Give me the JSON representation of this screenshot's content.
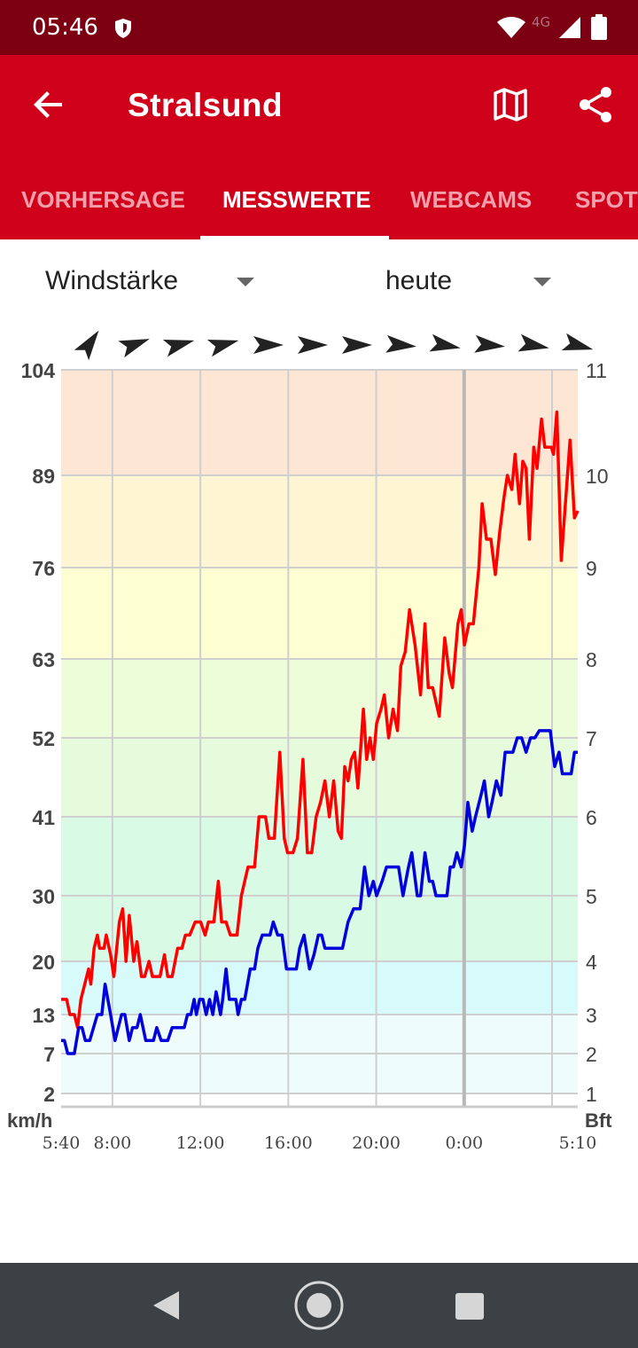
{
  "status": {
    "time": "05:46",
    "network": "4G",
    "battery": "95"
  },
  "header": {
    "title": "Stralsund"
  },
  "tabs": [
    {
      "label": "VORHERSAGE",
      "active": false
    },
    {
      "label": "MESSWERTE",
      "active": true
    },
    {
      "label": "WEBCAMS",
      "active": false
    },
    {
      "label": "SPOT",
      "active": false
    }
  ],
  "filters": {
    "metric": "Windstärke",
    "period": "heute"
  },
  "colors": {
    "status_bar": "#7d0012",
    "app_bar": "#d0021b",
    "gust_line": "#ff0000",
    "wind_line": "#0000dd"
  },
  "chart_data": {
    "type": "line",
    "y_left_unit": "km/h",
    "y_right_unit": "Bft",
    "y_left_ticks": [
      2,
      7,
      13,
      20,
      30,
      41,
      52,
      63,
      76,
      89,
      104
    ],
    "y_right_ticks": [
      1,
      2,
      3,
      4,
      5,
      6,
      7,
      8,
      9,
      10,
      11
    ],
    "x_tick_labels": [
      "5:40",
      "8:00",
      "12:00",
      "16:00",
      "20:00",
      "0:00",
      "5:10"
    ],
    "x_tick_hours": [
      0,
      2.333,
      6.333,
      10.333,
      14.333,
      18.333,
      23.5
    ],
    "x_range_hours": [
      0,
      23.5
    ],
    "wind_direction_arrows_deg": [
      35,
      70,
      75,
      75,
      90,
      90,
      90,
      95,
      100,
      95,
      100,
      105
    ],
    "bands": [
      {
        "from": 2,
        "to": 13,
        "color": "#eefdfc"
      },
      {
        "from": 13,
        "to": 20,
        "color": "#d7fafa"
      },
      {
        "from": 20,
        "to": 41,
        "color": "#d9fbe6"
      },
      {
        "from": 41,
        "to": 52,
        "color": "#e6fbdc"
      },
      {
        "from": 52,
        "to": 63,
        "color": "#eefdd9"
      },
      {
        "from": 63,
        "to": 76,
        "color": "#fefed3"
      },
      {
        "from": 76,
        "to": 89,
        "color": "#fef5d3"
      },
      {
        "from": 89,
        "to": 104,
        "color": "#fde6d3"
      }
    ],
    "series": [
      {
        "values": [
          [
            0.0,
            15
          ],
          [
            0.25,
            15
          ],
          [
            0.4,
            13
          ],
          [
            0.6,
            13
          ],
          [
            0.75,
            11
          ],
          [
            0.9,
            15
          ],
          [
            1.25,
            19
          ],
          [
            1.35,
            17
          ],
          [
            1.5,
            22
          ],
          [
            1.65,
            24
          ],
          [
            1.75,
            22
          ],
          [
            1.95,
            22
          ],
          [
            2.05,
            24
          ],
          [
            2.25,
            21
          ],
          [
            2.4,
            18
          ],
          [
            2.65,
            26
          ],
          [
            2.8,
            28
          ],
          [
            2.95,
            20
          ],
          [
            3.1,
            27
          ],
          [
            3.3,
            20
          ],
          [
            3.45,
            23
          ],
          [
            3.65,
            18
          ],
          [
            3.8,
            18
          ],
          [
            4.0,
            20
          ],
          [
            4.15,
            18
          ],
          [
            4.5,
            18
          ],
          [
            4.7,
            21
          ],
          [
            4.85,
            18
          ],
          [
            5.05,
            18
          ],
          [
            5.3,
            22
          ],
          [
            5.5,
            22
          ],
          [
            5.65,
            24
          ],
          [
            5.85,
            24
          ],
          [
            6.1,
            26
          ],
          [
            6.35,
            26
          ],
          [
            6.55,
            24
          ],
          [
            6.7,
            26
          ],
          [
            6.95,
            26
          ],
          [
            7.15,
            32
          ],
          [
            7.3,
            26
          ],
          [
            7.5,
            26
          ],
          [
            7.7,
            24
          ],
          [
            8.0,
            24
          ],
          [
            8.2,
            30
          ],
          [
            8.5,
            34
          ],
          [
            8.8,
            34
          ],
          [
            9.0,
            41
          ],
          [
            9.3,
            41
          ],
          [
            9.45,
            38
          ],
          [
            9.7,
            38
          ],
          [
            9.95,
            50
          ],
          [
            10.15,
            38
          ],
          [
            10.3,
            36
          ],
          [
            10.55,
            36
          ],
          [
            10.75,
            38
          ],
          [
            11.0,
            49
          ],
          [
            11.2,
            36
          ],
          [
            11.4,
            36
          ],
          [
            11.6,
            41
          ],
          [
            11.8,
            43
          ],
          [
            12.0,
            46
          ],
          [
            12.2,
            41
          ],
          [
            12.4,
            46
          ],
          [
            12.6,
            39
          ],
          [
            12.75,
            38
          ],
          [
            12.9,
            48
          ],
          [
            13.05,
            46
          ],
          [
            13.2,
            49
          ],
          [
            13.35,
            50
          ],
          [
            13.5,
            45
          ],
          [
            13.75,
            56
          ],
          [
            13.9,
            49
          ],
          [
            14.05,
            52
          ],
          [
            14.2,
            49
          ],
          [
            14.35,
            54
          ],
          [
            14.55,
            56
          ],
          [
            14.7,
            58
          ],
          [
            14.9,
            52
          ],
          [
            15.1,
            56
          ],
          [
            15.3,
            53
          ],
          [
            15.45,
            62
          ],
          [
            15.65,
            64
          ],
          [
            15.85,
            70
          ],
          [
            16.1,
            65
          ],
          [
            16.35,
            58
          ],
          [
            16.55,
            68
          ],
          [
            16.7,
            59
          ],
          [
            16.9,
            59
          ],
          [
            17.2,
            55
          ],
          [
            17.45,
            66
          ],
          [
            17.65,
            61
          ],
          [
            17.8,
            59
          ],
          [
            18.05,
            68
          ],
          [
            18.2,
            70
          ],
          [
            18.35,
            65
          ],
          [
            18.55,
            68
          ],
          [
            18.75,
            68
          ],
          [
            19.0,
            76
          ],
          [
            19.15,
            85
          ],
          [
            19.35,
            80
          ],
          [
            19.55,
            80
          ],
          [
            19.75,
            75
          ],
          [
            19.95,
            81
          ],
          [
            20.15,
            86
          ],
          [
            20.3,
            89
          ],
          [
            20.5,
            87
          ],
          [
            20.65,
            92
          ],
          [
            20.85,
            85
          ],
          [
            21.0,
            91
          ],
          [
            21.15,
            90
          ],
          [
            21.3,
            80
          ],
          [
            21.5,
            93
          ],
          [
            21.65,
            90
          ],
          [
            21.85,
            97
          ],
          [
            22.0,
            93
          ],
          [
            22.3,
            93
          ],
          [
            22.4,
            92
          ],
          [
            22.55,
            98
          ],
          [
            22.75,
            77
          ],
          [
            23.15,
            94
          ],
          [
            23.35,
            83
          ],
          [
            23.5,
            84
          ]
        ]
      },
      {
        "values": [
          [
            0.0,
            9
          ],
          [
            0.15,
            9
          ],
          [
            0.3,
            7
          ],
          [
            0.6,
            7
          ],
          [
            0.8,
            11
          ],
          [
            0.95,
            11
          ],
          [
            1.1,
            9
          ],
          [
            1.3,
            9
          ],
          [
            1.65,
            13
          ],
          [
            1.85,
            13
          ],
          [
            2.0,
            17
          ],
          [
            2.25,
            13
          ],
          [
            2.45,
            9
          ],
          [
            2.75,
            13
          ],
          [
            2.9,
            13
          ],
          [
            3.1,
            9
          ],
          [
            3.25,
            11
          ],
          [
            3.45,
            11
          ],
          [
            3.6,
            13
          ],
          [
            3.85,
            9
          ],
          [
            4.2,
            9
          ],
          [
            4.35,
            11
          ],
          [
            4.55,
            9
          ],
          [
            4.85,
            9
          ],
          [
            5.05,
            11
          ],
          [
            5.3,
            11
          ],
          [
            5.6,
            11
          ],
          [
            5.75,
            13
          ],
          [
            5.9,
            13
          ],
          [
            6.05,
            15
          ],
          [
            6.15,
            13
          ],
          [
            6.3,
            15
          ],
          [
            6.45,
            15
          ],
          [
            6.6,
            13
          ],
          [
            6.75,
            15
          ],
          [
            6.9,
            13
          ],
          [
            7.05,
            16
          ],
          [
            7.25,
            13
          ],
          [
            7.35,
            15
          ],
          [
            7.5,
            19
          ],
          [
            7.65,
            15
          ],
          [
            7.95,
            15
          ],
          [
            8.05,
            13
          ],
          [
            8.2,
            15
          ],
          [
            8.35,
            15
          ],
          [
            8.6,
            19
          ],
          [
            8.8,
            19
          ],
          [
            8.95,
            22
          ],
          [
            9.15,
            24
          ],
          [
            9.5,
            24
          ],
          [
            9.65,
            26
          ],
          [
            9.85,
            24
          ],
          [
            10.05,
            24
          ],
          [
            10.25,
            19
          ],
          [
            10.45,
            19
          ],
          [
            10.7,
            19
          ],
          [
            10.85,
            22
          ],
          [
            11.05,
            24
          ],
          [
            11.3,
            19
          ],
          [
            11.5,
            21
          ],
          [
            11.7,
            24
          ],
          [
            11.85,
            24
          ],
          [
            12.0,
            22
          ],
          [
            12.2,
            22
          ],
          [
            12.55,
            22
          ],
          [
            12.8,
            22
          ],
          [
            13.05,
            26
          ],
          [
            13.3,
            28
          ],
          [
            13.6,
            28
          ],
          [
            13.8,
            34
          ],
          [
            14.0,
            30
          ],
          [
            14.2,
            32
          ],
          [
            14.35,
            30
          ],
          [
            14.6,
            32
          ],
          [
            14.8,
            34
          ],
          [
            15.1,
            34
          ],
          [
            15.35,
            34
          ],
          [
            15.55,
            30
          ],
          [
            15.8,
            34
          ],
          [
            15.95,
            36
          ],
          [
            16.2,
            30
          ],
          [
            16.35,
            30
          ],
          [
            16.55,
            36
          ],
          [
            16.75,
            32
          ],
          [
            16.9,
            32
          ],
          [
            17.05,
            30
          ],
          [
            17.3,
            30
          ],
          [
            17.55,
            30
          ],
          [
            17.7,
            34
          ],
          [
            17.85,
            34
          ],
          [
            18.0,
            36
          ],
          [
            18.2,
            34
          ],
          [
            18.35,
            37
          ],
          [
            18.5,
            43
          ],
          [
            18.7,
            39
          ],
          [
            18.85,
            41
          ],
          [
            19.1,
            44
          ],
          [
            19.25,
            46
          ],
          [
            19.45,
            41
          ],
          [
            19.6,
            43
          ],
          [
            19.8,
            46
          ],
          [
            20.0,
            44
          ],
          [
            20.2,
            50
          ],
          [
            20.35,
            50
          ],
          [
            20.55,
            50
          ],
          [
            20.75,
            52
          ],
          [
            20.95,
            52
          ],
          [
            21.15,
            50
          ],
          [
            21.35,
            52
          ],
          [
            21.55,
            52
          ],
          [
            21.75,
            53
          ],
          [
            22.0,
            53
          ],
          [
            22.25,
            53
          ],
          [
            22.45,
            48
          ],
          [
            22.65,
            50
          ],
          [
            22.8,
            47
          ],
          [
            22.95,
            47
          ],
          [
            23.2,
            47
          ],
          [
            23.35,
            50
          ],
          [
            23.5,
            50
          ]
        ]
      }
    ]
  }
}
